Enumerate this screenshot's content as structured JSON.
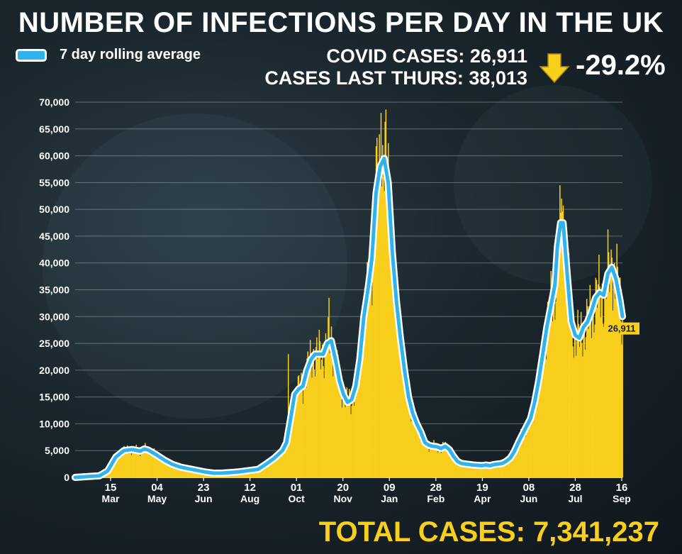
{
  "title": "NUMBER OF INFECTIONS PER DAY IN THE UK",
  "legend": {
    "label": "7 day rolling average"
  },
  "stats": {
    "covid_cases": "COVID CASES: 26,911",
    "cases_last_thurs": "CASES LAST THURS: 38,013",
    "change": "-29.2%"
  },
  "total": "TOTAL CASES: 7,341,237",
  "colors": {
    "bars": "#f8cf1c",
    "line": "#2fb3ea",
    "line_outline": "#ffffff",
    "text": "#ffffff",
    "total": "#f8cf1c"
  },
  "icons": {
    "change_arrow": "down-arrow-icon",
    "legend_swatch": "line-swatch"
  },
  "chart_data": {
    "type": "bar",
    "xlabel": "",
    "ylabel": "",
    "ylim": [
      0,
      70000
    ],
    "yticks": [
      "0",
      "5,000",
      "10,000",
      "15,000",
      "20,000",
      "25,000",
      "30,000",
      "35,000",
      "40,000",
      "45,000",
      "50,000",
      "55,000",
      "60,000",
      "65,000",
      "70,000"
    ],
    "xticks": [
      {
        "day": "15",
        "month": "Mar"
      },
      {
        "day": "04",
        "month": "May"
      },
      {
        "day": "23",
        "month": "Jun"
      },
      {
        "day": "12",
        "month": "Aug"
      },
      {
        "day": "01",
        "month": "Oct"
      },
      {
        "day": "20",
        "month": "Nov"
      },
      {
        "day": "09",
        "month": "Jan"
      },
      {
        "day": "28",
        "month": "Feb"
      },
      {
        "day": "19",
        "month": "Apr"
      },
      {
        "day": "08",
        "month": "Jun"
      },
      {
        "day": "28",
        "month": "Jul"
      },
      {
        "day": "16",
        "month": "Sep"
      }
    ],
    "grid": true,
    "series": [
      {
        "name": "7 day rolling average",
        "type": "line",
        "points": [
          [
            0,
            0
          ],
          [
            30,
            300
          ],
          [
            40,
            1200
          ],
          [
            50,
            3800
          ],
          [
            60,
            5000
          ],
          [
            70,
            5200
          ],
          [
            80,
            4900
          ],
          [
            85,
            5300
          ],
          [
            90,
            5100
          ],
          [
            100,
            4200
          ],
          [
            110,
            3200
          ],
          [
            120,
            2400
          ],
          [
            130,
            1900
          ],
          [
            140,
            1600
          ],
          [
            150,
            1300
          ],
          [
            160,
            1000
          ],
          [
            170,
            800
          ],
          [
            180,
            800
          ],
          [
            190,
            900
          ],
          [
            200,
            1000
          ],
          [
            210,
            1200
          ],
          [
            225,
            1500
          ],
          [
            235,
            2500
          ],
          [
            245,
            3600
          ],
          [
            255,
            5000
          ],
          [
            260,
            6500
          ],
          [
            265,
            11000
          ],
          [
            270,
            15500
          ],
          [
            275,
            16500
          ],
          [
            280,
            17000
          ],
          [
            285,
            20000
          ],
          [
            290,
            22000
          ],
          [
            295,
            23000
          ],
          [
            305,
            23000
          ],
          [
            310,
            25000
          ],
          [
            315,
            25500
          ],
          [
            320,
            22000
          ],
          [
            325,
            18000
          ],
          [
            330,
            15500
          ],
          [
            335,
            14000
          ],
          [
            340,
            14500
          ],
          [
            345,
            17000
          ],
          [
            350,
            22000
          ],
          [
            355,
            30000
          ],
          [
            360,
            35000
          ],
          [
            365,
            41000
          ],
          [
            370,
            53000
          ],
          [
            375,
            58000
          ],
          [
            380,
            59500
          ],
          [
            385,
            55000
          ],
          [
            390,
            42000
          ],
          [
            395,
            33000
          ],
          [
            400,
            26000
          ],
          [
            405,
            20000
          ],
          [
            410,
            15000
          ],
          [
            415,
            12000
          ],
          [
            420,
            10000
          ],
          [
            425,
            8500
          ],
          [
            430,
            6500
          ],
          [
            435,
            6000
          ],
          [
            440,
            5800
          ],
          [
            445,
            5700
          ],
          [
            450,
            5400
          ],
          [
            455,
            5800
          ],
          [
            460,
            5200
          ],
          [
            465,
            4000
          ],
          [
            470,
            3000
          ],
          [
            475,
            2600
          ],
          [
            480,
            2500
          ],
          [
            490,
            2300
          ],
          [
            500,
            2200
          ],
          [
            505,
            2300
          ],
          [
            510,
            2200
          ],
          [
            515,
            2400
          ],
          [
            520,
            2500
          ],
          [
            525,
            2600
          ],
          [
            530,
            3000
          ],
          [
            535,
            3600
          ],
          [
            540,
            4800
          ],
          [
            545,
            6500
          ],
          [
            550,
            8000
          ],
          [
            555,
            9500
          ],
          [
            560,
            11000
          ],
          [
            565,
            14000
          ],
          [
            570,
            18000
          ],
          [
            575,
            23000
          ],
          [
            580,
            28000
          ],
          [
            585,
            32000
          ],
          [
            590,
            36000
          ],
          [
            593,
            43000
          ],
          [
            597,
            47500
          ],
          [
            600,
            47500
          ],
          [
            605,
            38000
          ],
          [
            610,
            29000
          ],
          [
            615,
            26500
          ],
          [
            620,
            26000
          ],
          [
            625,
            28000
          ],
          [
            630,
            29000
          ],
          [
            635,
            31000
          ],
          [
            640,
            33500
          ],
          [
            645,
            34500
          ],
          [
            650,
            34000
          ],
          [
            655,
            38000
          ],
          [
            660,
            39200
          ],
          [
            665,
            37000
          ],
          [
            670,
            33000
          ],
          [
            673,
            30000
          ]
        ]
      }
    ],
    "daily_bars_note": "Yellow bars follow the rolling average with day-to-day spikes (peaks ~68,000 in Jan, ~54,500 in Jul, ~42,000 in Sep)",
    "x_range_days": [
      0,
      673
    ],
    "annotations": [
      {
        "label": "26,911",
        "x": 673,
        "y": 26911
      }
    ]
  }
}
